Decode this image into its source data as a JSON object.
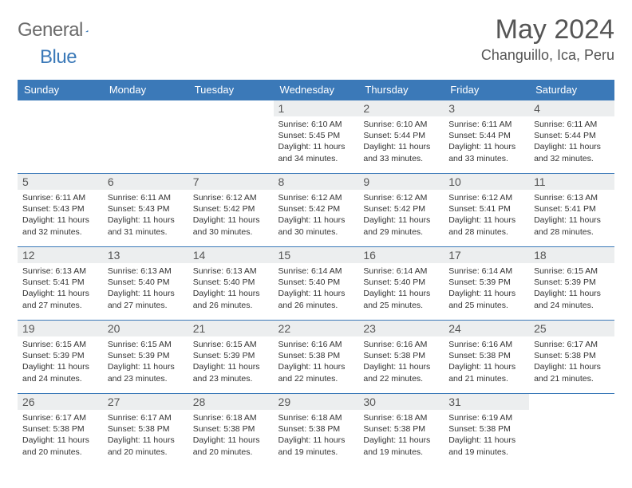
{
  "logo": {
    "word1": "General",
    "word2": "Blue"
  },
  "title": "May 2024",
  "location": "Changuillo, Ica, Peru",
  "colors": {
    "header_bg": "#3b79b8",
    "header_fg": "#ffffff",
    "daynum_bg": "#eceeef"
  },
  "weekdays": [
    "Sunday",
    "Monday",
    "Tuesday",
    "Wednesday",
    "Thursday",
    "Friday",
    "Saturday"
  ],
  "weeks": [
    [
      null,
      null,
      null,
      {
        "n": "1",
        "sr": "Sunrise: 6:10 AM",
        "ss": "Sunset: 5:45 PM",
        "dl": "Daylight: 11 hours and 34 minutes."
      },
      {
        "n": "2",
        "sr": "Sunrise: 6:10 AM",
        "ss": "Sunset: 5:44 PM",
        "dl": "Daylight: 11 hours and 33 minutes."
      },
      {
        "n": "3",
        "sr": "Sunrise: 6:11 AM",
        "ss": "Sunset: 5:44 PM",
        "dl": "Daylight: 11 hours and 33 minutes."
      },
      {
        "n": "4",
        "sr": "Sunrise: 6:11 AM",
        "ss": "Sunset: 5:44 PM",
        "dl": "Daylight: 11 hours and 32 minutes."
      }
    ],
    [
      {
        "n": "5",
        "sr": "Sunrise: 6:11 AM",
        "ss": "Sunset: 5:43 PM",
        "dl": "Daylight: 11 hours and 32 minutes."
      },
      {
        "n": "6",
        "sr": "Sunrise: 6:11 AM",
        "ss": "Sunset: 5:43 PM",
        "dl": "Daylight: 11 hours and 31 minutes."
      },
      {
        "n": "7",
        "sr": "Sunrise: 6:12 AM",
        "ss": "Sunset: 5:42 PM",
        "dl": "Daylight: 11 hours and 30 minutes."
      },
      {
        "n": "8",
        "sr": "Sunrise: 6:12 AM",
        "ss": "Sunset: 5:42 PM",
        "dl": "Daylight: 11 hours and 30 minutes."
      },
      {
        "n": "9",
        "sr": "Sunrise: 6:12 AM",
        "ss": "Sunset: 5:42 PM",
        "dl": "Daylight: 11 hours and 29 minutes."
      },
      {
        "n": "10",
        "sr": "Sunrise: 6:12 AM",
        "ss": "Sunset: 5:41 PM",
        "dl": "Daylight: 11 hours and 28 minutes."
      },
      {
        "n": "11",
        "sr": "Sunrise: 6:13 AM",
        "ss": "Sunset: 5:41 PM",
        "dl": "Daylight: 11 hours and 28 minutes."
      }
    ],
    [
      {
        "n": "12",
        "sr": "Sunrise: 6:13 AM",
        "ss": "Sunset: 5:41 PM",
        "dl": "Daylight: 11 hours and 27 minutes."
      },
      {
        "n": "13",
        "sr": "Sunrise: 6:13 AM",
        "ss": "Sunset: 5:40 PM",
        "dl": "Daylight: 11 hours and 27 minutes."
      },
      {
        "n": "14",
        "sr": "Sunrise: 6:13 AM",
        "ss": "Sunset: 5:40 PM",
        "dl": "Daylight: 11 hours and 26 minutes."
      },
      {
        "n": "15",
        "sr": "Sunrise: 6:14 AM",
        "ss": "Sunset: 5:40 PM",
        "dl": "Daylight: 11 hours and 26 minutes."
      },
      {
        "n": "16",
        "sr": "Sunrise: 6:14 AM",
        "ss": "Sunset: 5:40 PM",
        "dl": "Daylight: 11 hours and 25 minutes."
      },
      {
        "n": "17",
        "sr": "Sunrise: 6:14 AM",
        "ss": "Sunset: 5:39 PM",
        "dl": "Daylight: 11 hours and 25 minutes."
      },
      {
        "n": "18",
        "sr": "Sunrise: 6:15 AM",
        "ss": "Sunset: 5:39 PM",
        "dl": "Daylight: 11 hours and 24 minutes."
      }
    ],
    [
      {
        "n": "19",
        "sr": "Sunrise: 6:15 AM",
        "ss": "Sunset: 5:39 PM",
        "dl": "Daylight: 11 hours and 24 minutes."
      },
      {
        "n": "20",
        "sr": "Sunrise: 6:15 AM",
        "ss": "Sunset: 5:39 PM",
        "dl": "Daylight: 11 hours and 23 minutes."
      },
      {
        "n": "21",
        "sr": "Sunrise: 6:15 AM",
        "ss": "Sunset: 5:39 PM",
        "dl": "Daylight: 11 hours and 23 minutes."
      },
      {
        "n": "22",
        "sr": "Sunrise: 6:16 AM",
        "ss": "Sunset: 5:38 PM",
        "dl": "Daylight: 11 hours and 22 minutes."
      },
      {
        "n": "23",
        "sr": "Sunrise: 6:16 AM",
        "ss": "Sunset: 5:38 PM",
        "dl": "Daylight: 11 hours and 22 minutes."
      },
      {
        "n": "24",
        "sr": "Sunrise: 6:16 AM",
        "ss": "Sunset: 5:38 PM",
        "dl": "Daylight: 11 hours and 21 minutes."
      },
      {
        "n": "25",
        "sr": "Sunrise: 6:17 AM",
        "ss": "Sunset: 5:38 PM",
        "dl": "Daylight: 11 hours and 21 minutes."
      }
    ],
    [
      {
        "n": "26",
        "sr": "Sunrise: 6:17 AM",
        "ss": "Sunset: 5:38 PM",
        "dl": "Daylight: 11 hours and 20 minutes."
      },
      {
        "n": "27",
        "sr": "Sunrise: 6:17 AM",
        "ss": "Sunset: 5:38 PM",
        "dl": "Daylight: 11 hours and 20 minutes."
      },
      {
        "n": "28",
        "sr": "Sunrise: 6:18 AM",
        "ss": "Sunset: 5:38 PM",
        "dl": "Daylight: 11 hours and 20 minutes."
      },
      {
        "n": "29",
        "sr": "Sunrise: 6:18 AM",
        "ss": "Sunset: 5:38 PM",
        "dl": "Daylight: 11 hours and 19 minutes."
      },
      {
        "n": "30",
        "sr": "Sunrise: 6:18 AM",
        "ss": "Sunset: 5:38 PM",
        "dl": "Daylight: 11 hours and 19 minutes."
      },
      {
        "n": "31",
        "sr": "Sunrise: 6:19 AM",
        "ss": "Sunset: 5:38 PM",
        "dl": "Daylight: 11 hours and 19 minutes."
      },
      null
    ]
  ]
}
